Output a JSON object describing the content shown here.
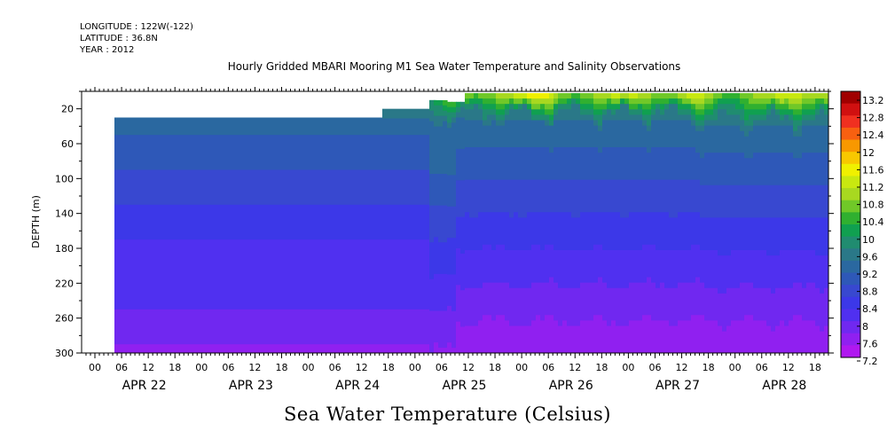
{
  "header": {
    "longitude": "LONGITUDE : 122W(-122)",
    "latitude": "LATITUDE : 36.8N",
    "year": "YEAR : 2012"
  },
  "chart_data": {
    "type": "heatmap",
    "title": "Hourly Gridded MBARI Mooring M1 Sea Water Temperature and Salinity Observations",
    "subtitle": "Sea Water Temperature (Celsius)",
    "xlabel": "",
    "ylabel": "DEPTH (m)",
    "ylim": [
      300,
      0
    ],
    "y_ticks": [
      20,
      60,
      100,
      140,
      180,
      220,
      260,
      300
    ],
    "x_hour_ticks": [
      "00",
      "06",
      "12",
      "18",
      "00",
      "06",
      "12",
      "18",
      "00",
      "06",
      "12",
      "18",
      "00",
      "06",
      "12",
      "18",
      "00",
      "06",
      "12",
      "18",
      "00",
      "06",
      "12",
      "18",
      "00",
      "06",
      "12",
      "18"
    ],
    "x_day_labels": [
      "APR 22",
      "APR 23",
      "APR 24",
      "APR 25",
      "APR 26",
      "APR 27",
      "APR 28"
    ],
    "colorbar": {
      "levels": [
        "13.2",
        "12.8",
        "12.4",
        "12",
        "11.6",
        "11.2",
        "10.8",
        "10.4",
        "10",
        "9.6",
        "9.2",
        "8.8",
        "8.4",
        "8",
        "7.6",
        "7.2"
      ],
      "colors": [
        "#a00000",
        "#d01010",
        "#f03020",
        "#f86010",
        "#f89800",
        "#f8c800",
        "#f0f000",
        "#c8e810",
        "#a8d820",
        "#70c828",
        "#30b030",
        "#10a050",
        "#208c70",
        "#2a7888",
        "#2a68a0",
        "#2e58b8",
        "#3848d0",
        "#3c38e8",
        "#5030f0",
        "#7028f0",
        "#9020f0",
        "#b018f0"
      ]
    },
    "profile_depths": [
      40,
      60,
      80,
      100,
      120,
      140,
      160,
      180,
      200,
      220,
      240,
      260,
      280,
      300
    ],
    "profile_temps": [
      9.25,
      9.0,
      8.8,
      8.65,
      8.5,
      8.35,
      8.2,
      8.1,
      8.0,
      7.9,
      7.85,
      7.75,
      7.6,
      7.4
    ],
    "surface_temps_apr25_28": [
      10.0,
      11.6,
      11.3,
      11.0,
      11.8,
      12.6,
      12.2,
      11.4,
      11.0,
      11.6,
      12.2,
      11.8,
      11.2,
      11.6,
      12.0,
      11.4,
      10.6,
      11.2,
      11.8,
      12.0,
      11.4,
      11.8
    ]
  }
}
